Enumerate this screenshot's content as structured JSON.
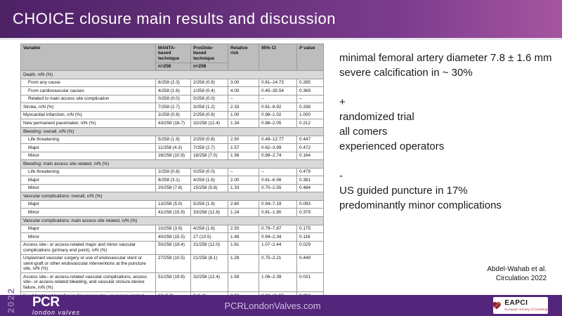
{
  "slide": {
    "title": "CHOICE closure main results and discussion",
    "year_tag": "2022"
  },
  "colors": {
    "header_gradient_left": "#4e2166",
    "header_gradient_right": "#a5559f",
    "footer_purple": "#53257b",
    "table_header_gray": "#bdbdbd",
    "table_section_gray": "#d9d9d9",
    "year_tag_purple": "#9579b2",
    "eapci_red": "#8e1f3e"
  },
  "table": {
    "col_headers": {
      "variable": "Variable",
      "group1_name": "MANTA-based technique",
      "group1_n": "n=258",
      "group2_name": "ProGlide-based technique",
      "group2_n": "n=258",
      "relative_risk": "Relative risk",
      "ci": "95% CI",
      "p_italic": "P",
      "p_rest": " value"
    },
    "rows": [
      {
        "type": "section",
        "label": "Death, n/N (%)"
      },
      {
        "type": "data",
        "indent": 1,
        "label": "From any cause",
        "manta": "6/258 (2.3)",
        "proglide": "2/258 (0.8)",
        "rr": "3.00",
        "ci": "0.61–14.73",
        "p": "0.285"
      },
      {
        "type": "data",
        "indent": 1,
        "label": "From cardiovascular causes",
        "manta": "4/258 (1.6)",
        "proglide": "1/258 (0.4)",
        "rr": "4.00",
        "ci": "0.45–35.54",
        "p": "0.369"
      },
      {
        "type": "data",
        "indent": 1,
        "label": "Related to main access site complication",
        "manta": "0/258 (0.0)",
        "proglide": "0/258 (0.0)",
        "rr": "–",
        "ci": "–",
        "p": "–"
      },
      {
        "type": "data",
        "indent": 0,
        "label": "Stroke, n/N (%)",
        "manta": "7/258 (2.7)",
        "proglide": "3/258 (1.2)",
        "rr": "2.33",
        "ci": "0.61–8.92",
        "p": "0.338"
      },
      {
        "type": "data",
        "indent": 0,
        "label": "Myocardial infarction, n/N (%)",
        "manta": "2/258 (0.8)",
        "proglide": "2/258 (0.8)",
        "rr": "1.00",
        "ci": "0.98–1.02",
        "p": "1.000"
      },
      {
        "type": "data",
        "indent": 0,
        "label": "New permanent pacemaker, n/N (%)",
        "manta": "43/258 (16.7)",
        "proglide": "32/258 (12.4)",
        "rr": "1.34",
        "ci": "0.88–2.05",
        "p": "0.212"
      },
      {
        "type": "section",
        "label": "Bleeding: overall, n/N (%)"
      },
      {
        "type": "data",
        "indent": 1,
        "label": "Life threatening",
        "manta": "5/258 (1.9)",
        "proglide": "2/258 (0.8)",
        "rr": "2.50",
        "ci": "0.49–12.77",
        "p": "0.447"
      },
      {
        "type": "data",
        "indent": 1,
        "label": "Major",
        "manta": "11/258 (4.3)",
        "proglide": "7/258 (2.7)",
        "rr": "1.57",
        "ci": "0.62–3.99",
        "p": "0.472"
      },
      {
        "type": "data",
        "indent": 1,
        "label": "Minor",
        "manta": "28/258 (10.9)",
        "proglide": "18/258 (7.0)",
        "rr": "1.56",
        "ci": "0.89–2.74",
        "p": "0.164"
      },
      {
        "type": "section",
        "label": "Bleeding: main access site related, n/N (%)"
      },
      {
        "type": "data",
        "indent": 1,
        "label": "Life threatening",
        "manta": "2/258 (0.8)",
        "proglide": "0/258 (0.0)",
        "rr": "–",
        "ci": "–",
        "p": "0.479"
      },
      {
        "type": "data",
        "indent": 1,
        "label": "Major",
        "manta": "8/258 (3.1)",
        "proglide": "4/258 (1.6)",
        "rr": "2.00",
        "ci": "0.61–6.56",
        "p": "0.381"
      },
      {
        "type": "data",
        "indent": 1,
        "label": "Minor",
        "manta": "20/258 (7.8)",
        "proglide": "15/258 (5.8)",
        "rr": "1.33",
        "ci": "0.70–2.55",
        "p": "0.484"
      },
      {
        "type": "section",
        "label": "Vascular complications: overall, n/N (%)"
      },
      {
        "type": "data",
        "indent": 1,
        "label": "Major",
        "manta": "13/258 (5.0)",
        "proglide": "5/258 (1.9)",
        "rr": "2.60",
        "ci": "0.94–7.19",
        "p": "0.093"
      },
      {
        "type": "data",
        "indent": 1,
        "label": "Minor",
        "manta": "41/258 (15.9)",
        "proglide": "33/258 (12.8)",
        "rr": "1.24",
        "ci": "0.81–1.90",
        "p": "0.379"
      },
      {
        "type": "section",
        "label": "Vascular complications: main access site related, n/N (%)"
      },
      {
        "type": "data",
        "indent": 1,
        "label": "Major",
        "manta": "10/258 (3.9)",
        "proglide": "4/258 (1.6)",
        "rr": "2.50",
        "ci": "0.79–7.87",
        "p": "0.175"
      },
      {
        "type": "data",
        "indent": 1,
        "label": "Minor",
        "manta": "40/258 (15.5)",
        "proglide": "27 (10.5)",
        "rr": "1.48",
        "ci": "0.94–2.34",
        "p": "0.116"
      },
      {
        "type": "data",
        "indent": 0,
        "label": "Access site– or access-related major and minor vascular complications (primary end point), n/N (%)",
        "manta": "50/258 (19.4)",
        "proglide": "31/258 (12.0)",
        "rr": "1.61",
        "ci": "1.07–2.44",
        "p": "0.029"
      },
      {
        "type": "data",
        "indent": 0,
        "label": "Unplanned vascular surgery or use of endovascular stent or stent-graft or other endovascular interventions at the puncture site, n/N (%)",
        "manta": "27/258 (10.5)",
        "proglide": "21/258 (8.1)",
        "rr": "1.29",
        "ci": "0.75–2.21",
        "p": "0.449"
      },
      {
        "type": "data",
        "indent": 0,
        "label": "Access site– or access-related vascular complications, access site– or access-related bleeding, and vascular closure device failure, n/N (%)",
        "manta": "51/258 (19.8)",
        "proglide": "32/258 (12.4)",
        "rr": "1.59",
        "ci": "1.06–2.39",
        "p": "0.031"
      },
      {
        "type": "data",
        "indent": 0,
        "label": "Need for blood transfusion for access site– or access-related bleeding or vascular complications, n/N (%)",
        "manta": "10 (3.9)",
        "proglide": "3 (1.2)",
        "rr": "3.33",
        "ci": "0.93–11.97",
        "p": "0.092"
      },
      {
        "type": "data",
        "indent": 0,
        "label": "Acute kidney injury, n/N (%)",
        "manta": "18/258 (7.0)",
        "proglide": "13/258 (5.0)",
        "rr": "1.38",
        "ci": "0.69–2.77",
        "p": "0.459"
      },
      {
        "type": "data",
        "indent": 0,
        "label": "Need for renal replacement therapy, n/N (%)",
        "manta": "6/258 (2.3)",
        "proglide": "2/258 (0.8)",
        "rr": "3.00",
        "ci": "0.61–14.73",
        "p": "0.285"
      }
    ]
  },
  "notes": {
    "lines": [
      "minimal femoral artery diameter 7.8 ± 1.6 mm",
      "severe calcification in ~ 30%",
      "",
      "+",
      "randomized trial",
      "all comers",
      "experienced operators",
      "",
      "-",
      "US guided puncture in 17%",
      "predominantly minor complications"
    ]
  },
  "citation": {
    "line1": "Abdel-Wahab et al.",
    "line2": "Circulation 2022"
  },
  "footer": {
    "brand": "PCR",
    "brand_sub": "london valves",
    "website": "PCRLondonValves.com",
    "badge": {
      "name": "EAPCI",
      "sub": "European Society of Cardiology"
    }
  }
}
